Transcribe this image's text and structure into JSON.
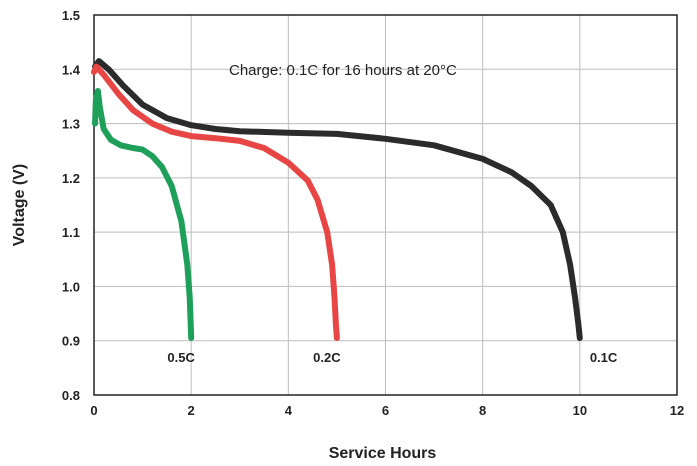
{
  "chart_data": {
    "type": "line",
    "title": "",
    "xlabel": "Service Hours",
    "ylabel": "Voltage (V)",
    "xlim": [
      0,
      12
    ],
    "ylim": [
      0.8,
      1.5
    ],
    "xticks": [
      "0",
      "2",
      "4",
      "6",
      "8",
      "10",
      "12"
    ],
    "yticks": [
      "0.8",
      "0.9",
      "1.0",
      "1.1",
      "1.2",
      "1.3",
      "1.4",
      "1.5"
    ],
    "grid": true,
    "annotation": "Charge: 0.1C for 16 hours at 20°C",
    "series": [
      {
        "name": "0.1C",
        "color": "#2b2b2b",
        "points": [
          [
            0.02,
            1.405
          ],
          [
            0.1,
            1.415
          ],
          [
            0.3,
            1.4
          ],
          [
            0.6,
            1.37
          ],
          [
            1.0,
            1.335
          ],
          [
            1.5,
            1.31
          ],
          [
            2.0,
            1.297
          ],
          [
            2.5,
            1.29
          ],
          [
            3.0,
            1.286
          ],
          [
            4.0,
            1.283
          ],
          [
            5.0,
            1.281
          ],
          [
            6.0,
            1.272
          ],
          [
            7.0,
            1.26
          ],
          [
            8.0,
            1.235
          ],
          [
            8.6,
            1.21
          ],
          [
            9.0,
            1.185
          ],
          [
            9.4,
            1.15
          ],
          [
            9.65,
            1.1
          ],
          [
            9.8,
            1.04
          ],
          [
            9.9,
            0.98
          ],
          [
            9.97,
            0.93
          ],
          [
            10.0,
            0.905
          ]
        ]
      },
      {
        "name": "0.2C",
        "color": "#e84545",
        "points": [
          [
            0.0,
            1.395
          ],
          [
            0.05,
            1.405
          ],
          [
            0.2,
            1.39
          ],
          [
            0.5,
            1.355
          ],
          [
            0.8,
            1.325
          ],
          [
            1.2,
            1.3
          ],
          [
            1.6,
            1.285
          ],
          [
            2.0,
            1.277
          ],
          [
            2.5,
            1.273
          ],
          [
            3.0,
            1.268
          ],
          [
            3.5,
            1.255
          ],
          [
            4.0,
            1.228
          ],
          [
            4.4,
            1.195
          ],
          [
            4.6,
            1.16
          ],
          [
            4.8,
            1.1
          ],
          [
            4.9,
            1.04
          ],
          [
            4.95,
            0.98
          ],
          [
            4.98,
            0.93
          ],
          [
            5.0,
            0.905
          ]
        ]
      },
      {
        "name": "0.5C",
        "color": "#1fa05a",
        "points": [
          [
            0.02,
            1.3
          ],
          [
            0.04,
            1.345
          ],
          [
            0.08,
            1.36
          ],
          [
            0.12,
            1.33
          ],
          [
            0.2,
            1.29
          ],
          [
            0.35,
            1.27
          ],
          [
            0.55,
            1.26
          ],
          [
            0.8,
            1.255
          ],
          [
            1.0,
            1.252
          ],
          [
            1.2,
            1.24
          ],
          [
            1.4,
            1.22
          ],
          [
            1.6,
            1.185
          ],
          [
            1.8,
            1.12
          ],
          [
            1.92,
            1.04
          ],
          [
            1.97,
            0.98
          ],
          [
            1.99,
            0.93
          ],
          [
            2.0,
            0.905
          ]
        ]
      }
    ]
  }
}
